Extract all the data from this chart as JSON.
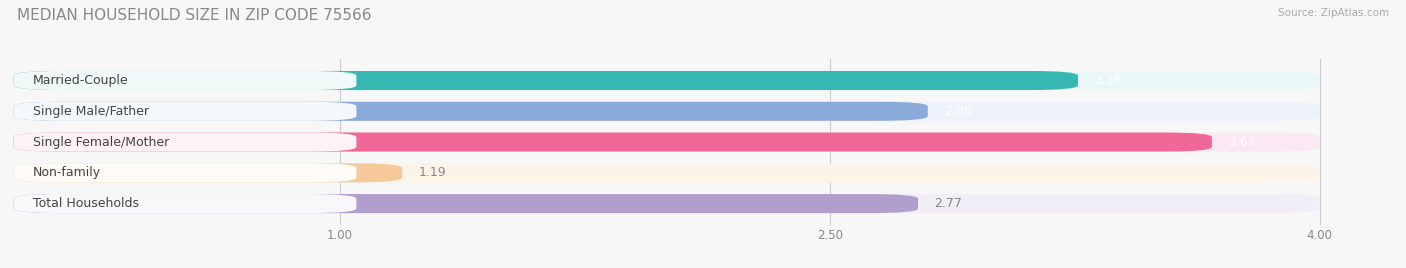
{
  "title": "MEDIAN HOUSEHOLD SIZE IN ZIP CODE 75566",
  "source": "Source: ZipAtlas.com",
  "categories": [
    "Married-Couple",
    "Single Male/Father",
    "Single Female/Mother",
    "Non-family",
    "Total Households"
  ],
  "values": [
    3.26,
    2.8,
    3.67,
    1.19,
    2.77
  ],
  "bar_colors": [
    "#38b8b2",
    "#8aaada",
    "#f06898",
    "#f5c99a",
    "#b09fcc"
  ],
  "bar_bg_colors": [
    "#eaf7f7",
    "#eef2fa",
    "#fce8f2",
    "#fdf4e8",
    "#f2eef8"
  ],
  "value_colors": [
    "white",
    "white",
    "white",
    "#888888",
    "#888888"
  ],
  "xlim_min": 0.0,
  "xlim_max": 4.2,
  "xdata_max": 4.0,
  "xticks": [
    1.0,
    2.5,
    4.0
  ],
  "label_fontsize": 9.0,
  "value_fontsize": 9.0,
  "title_fontsize": 11,
  "title_color": "#888888",
  "source_color": "#aaaaaa",
  "background_color": "#f7f7f7",
  "bar_height": 0.62,
  "bar_gap": 1.0
}
